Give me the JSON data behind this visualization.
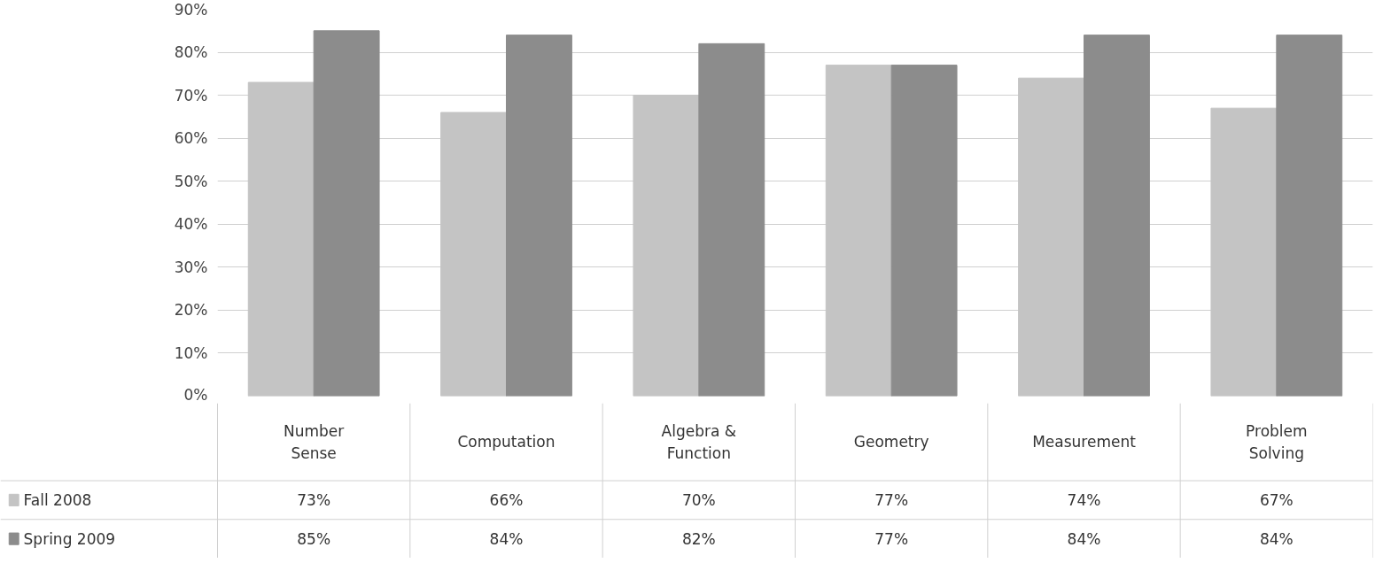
{
  "chart_data": {
    "type": "bar",
    "categories": [
      "Number Sense",
      "Computation",
      "Algebra & Function",
      "Geometry",
      "Measurement",
      "Problem Solving"
    ],
    "series": [
      {
        "name": "Fall 2008",
        "color": "#c4c4c4",
        "values": [
          73,
          66,
          70,
          77,
          74,
          67
        ],
        "value_labels": [
          "73%",
          "66%",
          "70%",
          "77%",
          "74%",
          "67%"
        ]
      },
      {
        "name": "Spring 2009",
        "color": "#8c8c8c",
        "values": [
          85,
          84,
          82,
          77,
          84,
          84
        ],
        "value_labels": [
          "85%",
          "84%",
          "82%",
          "77%",
          "84%",
          "84%"
        ]
      }
    ],
    "ylim": [
      0,
      90
    ],
    "yticks": [
      {
        "value": 0,
        "label": "0%"
      },
      {
        "value": 10,
        "label": "10%"
      },
      {
        "value": 20,
        "label": "20%"
      },
      {
        "value": 30,
        "label": "30%"
      },
      {
        "value": 40,
        "label": "40%"
      },
      {
        "value": 50,
        "label": "50%"
      },
      {
        "value": 60,
        "label": "60%"
      },
      {
        "value": 70,
        "label": "70%"
      },
      {
        "value": 80,
        "label": "80%"
      },
      {
        "value": 90,
        "label": "90%"
      }
    ],
    "grid": "y",
    "legend": "bottom left"
  }
}
